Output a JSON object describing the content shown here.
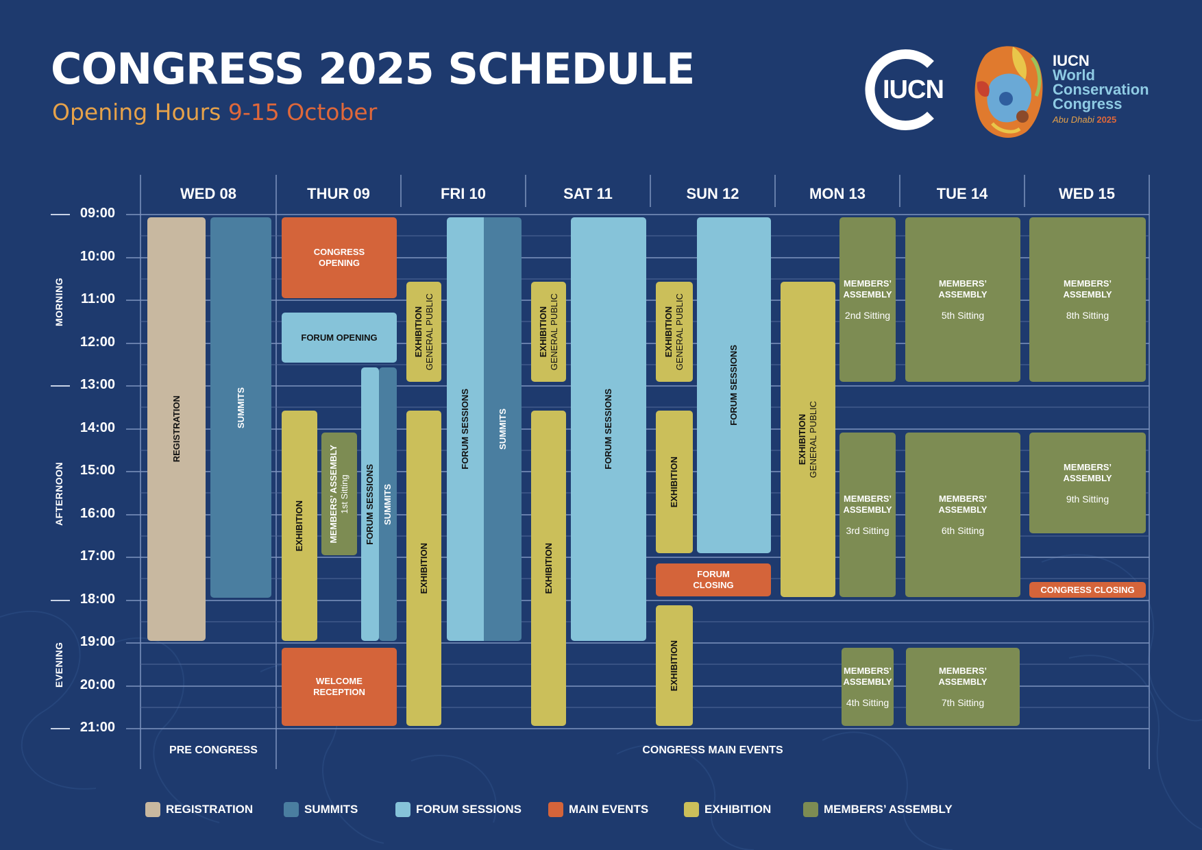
{
  "header": {
    "title": "CONGRESS 2025 SCHEDULE",
    "subtitle_a": "Opening Hours",
    "subtitle_b": "9-15 October"
  },
  "logos": {
    "iucn": "IUCN",
    "wcc_line1": "IUCN",
    "wcc_line2": "World",
    "wcc_line3": "Conservation",
    "wcc_line4": "Congress",
    "wcc_line5a": "Abu Dhabi",
    "wcc_line5b": "2025"
  },
  "days": [
    "WED 08",
    "THUR 09",
    "FRI 10",
    "SAT 11",
    "SUN 12",
    "MON 13",
    "TUE 14",
    "WED 15"
  ],
  "times": [
    "09:00",
    "10:00",
    "11:00",
    "12:00",
    "13:00",
    "14:00",
    "15:00",
    "16:00",
    "17:00",
    "18:00",
    "19:00",
    "20:00",
    "21:00"
  ],
  "periods": {
    "morning": "MORNING",
    "afternoon": "AFTERNOON",
    "evening": "EVENING"
  },
  "events": {
    "wed08_registration": "REGISTRATION",
    "wed08_summits": "SUMMITS",
    "thu_congress_opening_1": "CONGRESS",
    "thu_congress_opening_2": "OPENING",
    "thu_forum_opening": "FORUM OPENING",
    "thu_exhibition": "EXHIBITION",
    "thu_members_1": "MEMBERS’ ASSEMBLY",
    "thu_members_2": "1st Sitting",
    "thu_forum_sessions": "FORUM SESSIONS",
    "thu_summits": "SUMMITS",
    "thu_welcome_1": "WELCOME",
    "thu_welcome_2": "RECEPTION",
    "fri_exh_gp_1": "EXHIBITION",
    "fri_exh_gp_2": "GENERAL PUBLIC",
    "fri_exhibition": "EXHIBITION",
    "fri_forum_sessions": "FORUM SESSIONS",
    "fri_summits": "SUMMITS",
    "sat_exh_gp_1": "EXHIBITION",
    "sat_exh_gp_2": "GENERAL PUBLIC",
    "sat_exhibition": "EXHIBITION",
    "sat_forum_sessions": "FORUM SESSIONS",
    "sun_exh_gp_1": "EXHIBITION",
    "sun_exh_gp_2": "GENERAL PUBLIC",
    "sun_exhibition_pm": "EXHIBITION",
    "sun_exhibition_eve": "EXHIBITION",
    "sun_forum_sessions": "FORUM SESSIONS",
    "sun_forum_closing_1": "FORUM",
    "sun_forum_closing_2": "CLOSING",
    "mon_exh_gp_1": "EXHIBITION",
    "mon_exh_gp_2": "GENERAL PUBLIC",
    "members_label_1": "MEMBERS’",
    "members_label_2": "ASSEMBLY",
    "mon_sit_am": "2nd Sitting",
    "mon_sit_pm": "3rd Sitting",
    "mon_sit_eve": "4th Sitting",
    "tue_sit_am": "5th Sitting",
    "tue_sit_pm": "6th Sitting",
    "tue_sit_eve": "7th Sitting",
    "wed15_sit_am": "8th Sitting",
    "wed15_sit_pm": "9th Sitting",
    "wed15_closing": "CONGRESS CLOSING"
  },
  "footer": {
    "pre": "PRE CONGRESS",
    "main": "CONGRESS MAIN EVENTS"
  },
  "legend": [
    "REGISTRATION",
    "SUMMITS",
    "FORUM SESSIONS",
    "MAIN EVENTS",
    "EXHIBITION",
    "MEMBERS’ ASSEMBLY"
  ],
  "colors": {
    "background": "#1e3a6e",
    "registration": "#c8b8a0",
    "summits": "#4a7ea0",
    "forum_sessions": "#86c3d9",
    "main_events": "#d4643a",
    "exhibition": "#cbbf5a",
    "members_assembly": "#7d8c53",
    "subtitle_orange": "#e6a24a",
    "subtitle_red": "#e0683a"
  }
}
